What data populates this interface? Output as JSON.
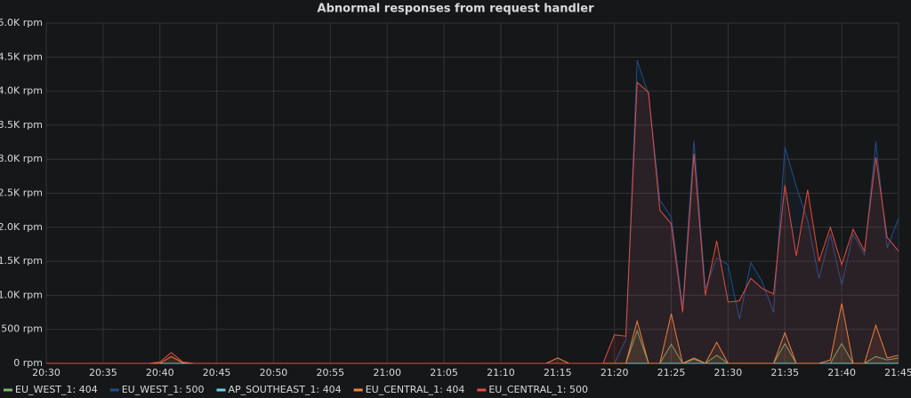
{
  "chart_data": {
    "type": "line",
    "title": "Abnormal responses from request handler",
    "x": [
      "20:30",
      null,
      null,
      null,
      null,
      "20:35",
      null,
      null,
      null,
      null,
      "20:40",
      null,
      null,
      null,
      null,
      "20:45",
      null,
      null,
      null,
      null,
      "20:50",
      null,
      null,
      null,
      null,
      "20:55",
      null,
      null,
      null,
      null,
      "21:00",
      null,
      null,
      null,
      null,
      "21:05",
      null,
      null,
      null,
      null,
      "21:10",
      null,
      null,
      null,
      null,
      "21:15",
      null,
      null,
      null,
      null,
      "21:20",
      null,
      null,
      null,
      null,
      "21:25",
      null,
      null,
      null,
      null,
      "21:30",
      null,
      null,
      null,
      null,
      "21:35",
      null,
      null,
      null,
      null,
      "21:40",
      null,
      null,
      null,
      null,
      "21:45"
    ],
    "series": [
      {
        "name": "EU_WEST_1: 404",
        "color": "#7eb26d",
        "values": [
          0,
          0,
          0,
          0,
          0,
          0,
          0,
          0,
          0,
          0,
          0,
          0,
          0,
          0,
          0,
          0,
          0,
          0,
          0,
          0,
          0,
          0,
          0,
          0,
          0,
          0,
          0,
          0,
          0,
          0,
          0,
          0,
          0,
          0,
          0,
          0,
          0,
          0,
          0,
          0,
          0,
          0,
          0,
          0,
          0,
          0,
          0,
          0,
          0,
          0,
          0,
          0,
          480,
          0,
          0,
          280,
          0,
          60,
          0,
          120,
          0,
          0,
          0,
          0,
          0,
          290,
          0,
          0,
          0,
          0,
          290,
          0,
          0,
          100,
          50,
          80
        ]
      },
      {
        "name": "EU_WEST_1: 500",
        "color": "#1f4e8c",
        "values": [
          0,
          0,
          0,
          0,
          0,
          0,
          0,
          0,
          0,
          0,
          0,
          0,
          0,
          0,
          0,
          0,
          0,
          0,
          0,
          0,
          0,
          0,
          0,
          0,
          0,
          0,
          0,
          0,
          0,
          0,
          0,
          0,
          0,
          0,
          0,
          0,
          0,
          0,
          0,
          0,
          0,
          0,
          0,
          0,
          0,
          0,
          0,
          0,
          0,
          0,
          0,
          350,
          4450,
          3950,
          2400,
          2150,
          850,
          3270,
          1100,
          1550,
          1450,
          650,
          1480,
          1200,
          750,
          3180,
          2600,
          2100,
          1250,
          1900,
          1150,
          1900,
          1600,
          3260,
          1700,
          2130
        ]
      },
      {
        "name": "AP_SOUTHEAST_1: 404",
        "color": "#6ed0e0",
        "values": [
          0,
          0,
          0,
          0,
          0,
          0,
          0,
          0,
          0,
          0,
          0,
          0,
          0,
          0,
          0,
          0,
          0,
          0,
          0,
          0,
          0,
          0,
          0,
          0,
          0,
          0,
          0,
          0,
          0,
          0,
          0,
          0,
          0,
          0,
          0,
          0,
          0,
          0,
          0,
          0,
          0,
          0,
          0,
          0,
          0,
          0,
          0,
          0,
          0,
          0,
          0,
          0,
          0,
          0,
          0,
          0,
          0,
          0,
          0,
          0,
          0,
          0,
          0,
          0,
          0,
          0,
          0,
          0,
          0,
          0,
          0,
          0,
          0,
          0,
          0,
          0
        ]
      },
      {
        "name": "EU_CENTRAL_1: 404",
        "color": "#ef843c",
        "values": [
          0,
          0,
          0,
          0,
          0,
          0,
          0,
          0,
          0,
          0,
          0,
          100,
          10,
          0,
          0,
          0,
          0,
          0,
          0,
          0,
          0,
          0,
          0,
          0,
          0,
          0,
          0,
          0,
          0,
          0,
          0,
          0,
          0,
          0,
          0,
          0,
          0,
          0,
          0,
          0,
          0,
          0,
          0,
          0,
          0,
          80,
          0,
          0,
          0,
          0,
          0,
          0,
          620,
          0,
          0,
          730,
          0,
          80,
          0,
          310,
          0,
          0,
          0,
          0,
          0,
          450,
          0,
          0,
          0,
          50,
          880,
          0,
          0,
          560,
          80,
          120
        ]
      },
      {
        "name": "EU_CENTRAL_1: 500",
        "color": "#e24d42",
        "values": [
          0,
          0,
          0,
          0,
          0,
          0,
          0,
          0,
          0,
          0,
          20,
          160,
          20,
          0,
          0,
          0,
          0,
          0,
          0,
          0,
          0,
          0,
          0,
          0,
          0,
          0,
          0,
          0,
          0,
          0,
          0,
          0,
          0,
          0,
          0,
          0,
          0,
          0,
          0,
          0,
          0,
          0,
          0,
          0,
          0,
          0,
          0,
          0,
          0,
          0,
          420,
          400,
          4130,
          3980,
          2250,
          2050,
          750,
          3080,
          1000,
          1800,
          900,
          920,
          1250,
          1100,
          1020,
          2620,
          1580,
          2550,
          1500,
          2000,
          1450,
          1970,
          1650,
          3030,
          1850,
          1650
        ]
      }
    ],
    "ylim": [
      0,
      5000
    ],
    "yticks": [
      {
        "value": 0,
        "label": "0 rpm"
      },
      {
        "value": 500,
        "label": "500 rpm"
      },
      {
        "value": 1000,
        "label": "1.0K rpm"
      },
      {
        "value": 1500,
        "label": "1.5K rpm"
      },
      {
        "value": 2000,
        "label": "2.0K rpm"
      },
      {
        "value": 2500,
        "label": "2.5K rpm"
      },
      {
        "value": 3000,
        "label": "3.0K rpm"
      },
      {
        "value": 3500,
        "label": "3.5K rpm"
      },
      {
        "value": 4000,
        "label": "4.0K rpm"
      },
      {
        "value": 4500,
        "label": "4.5K rpm"
      },
      {
        "value": 5000,
        "label": "5.0K rpm"
      }
    ],
    "grid": true,
    "legend": "bottom"
  }
}
